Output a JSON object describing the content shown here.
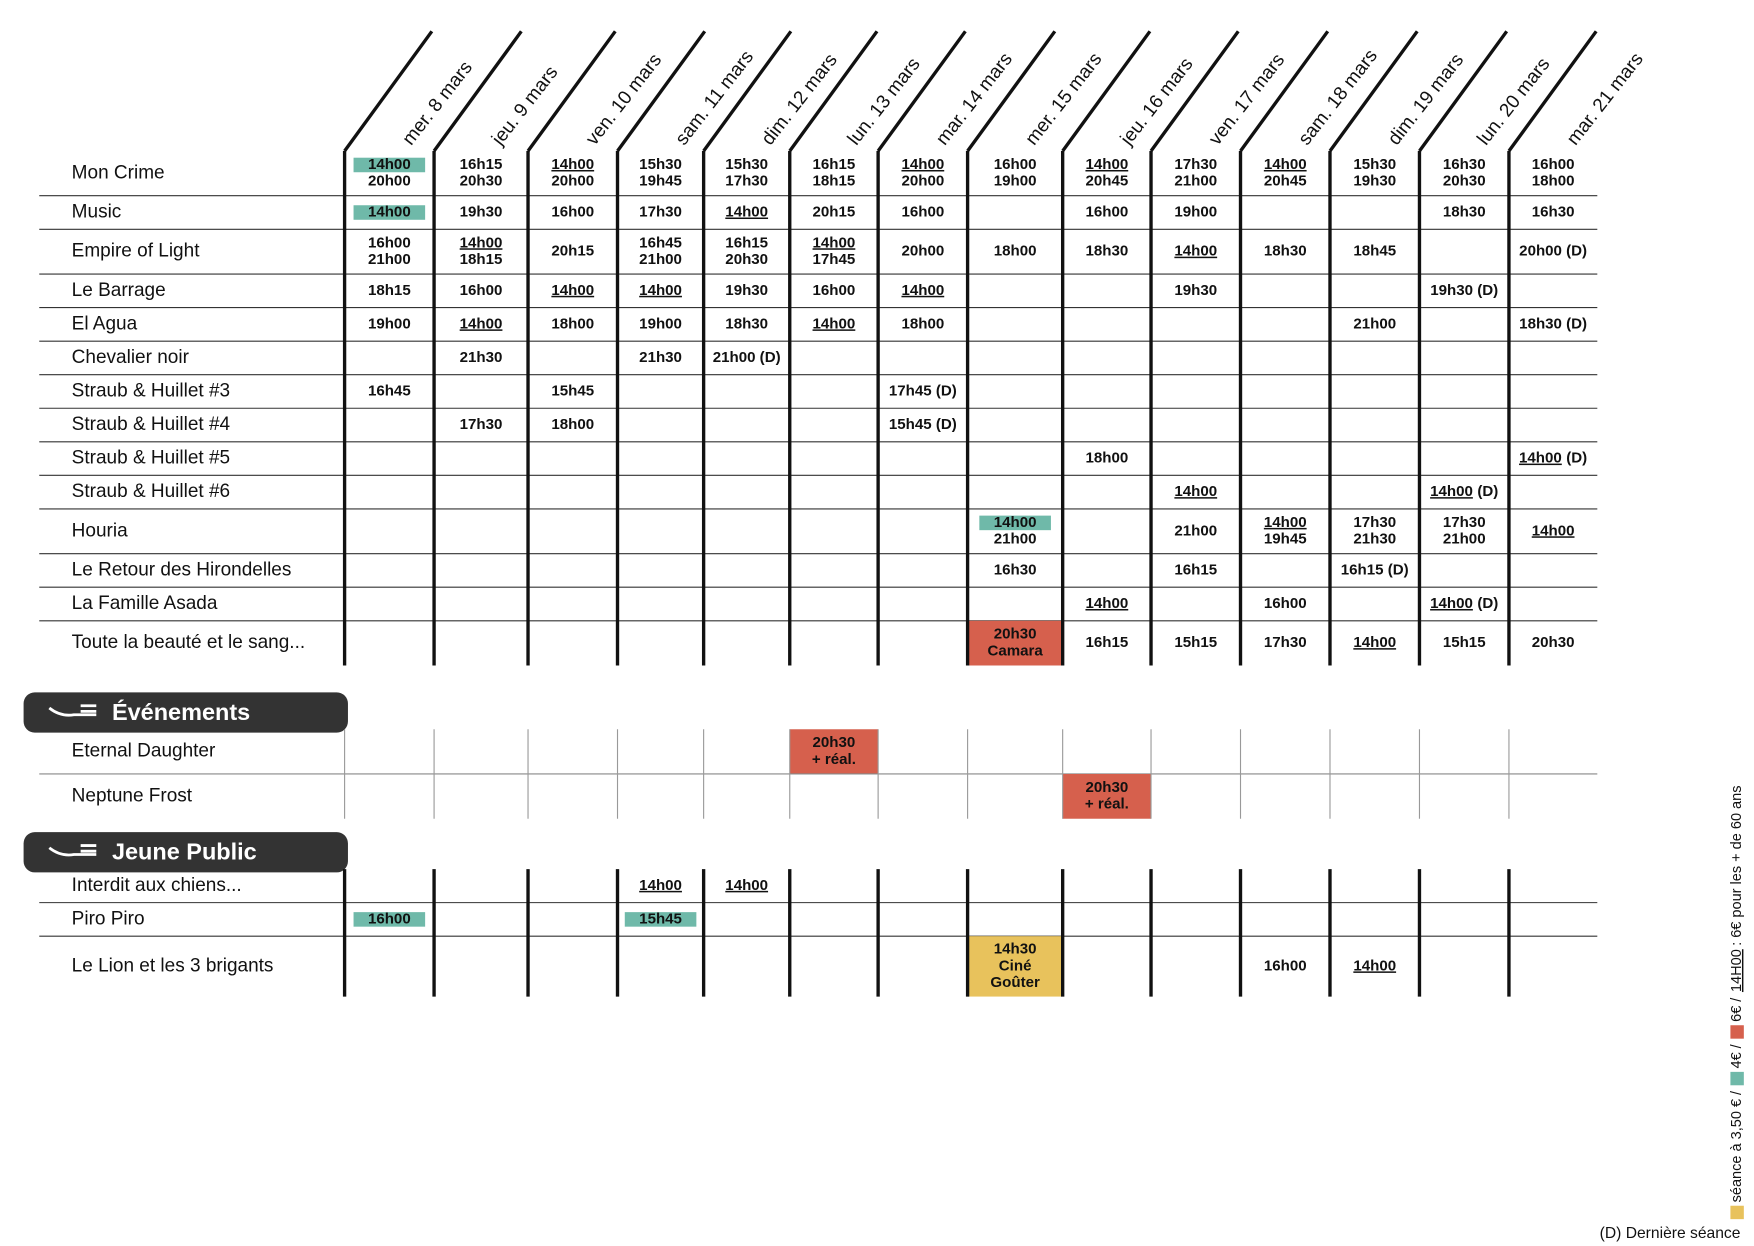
{
  "days": [
    "mer. 8 mars",
    "jeu. 9 mars",
    "ven. 10 mars",
    "sam. 11 mars",
    "dim. 12 mars",
    "lun. 13 mars",
    "mar. 14 mars",
    "mer. 15 mars",
    "jeu. 16 mars",
    "ven. 17 mars",
    "sam. 18 mars",
    "dim. 19 mars",
    "lun. 20 mars",
    "mar. 21 mars"
  ],
  "colors": {
    "reduced": "#6fb9a9",
    "special": "#d6604d",
    "kids": "#e8c25c",
    "pill": "#333333"
  },
  "sections": [
    {
      "films": [
        {
          "name": "Mon Crime",
          "cells": [
            [
              {
                "t": "14h00",
                "hl": true
              },
              "20h00"
            ],
            [
              "16h15",
              "20h30"
            ],
            [
              {
                "t": "14h00",
                "u": true
              },
              "20h00"
            ],
            [
              "15h30",
              "19h45"
            ],
            [
              "15h30",
              "17h30"
            ],
            [
              "16h15",
              "18h15"
            ],
            [
              {
                "t": "14h00",
                "u": true
              },
              "20h00"
            ],
            [
              "16h00",
              "19h00"
            ],
            [
              {
                "t": "14h00",
                "u": true
              },
              "20h45"
            ],
            [
              "17h30",
              "21h00"
            ],
            [
              {
                "t": "14h00",
                "u": true
              },
              "20h45"
            ],
            [
              "15h30",
              "19h30"
            ],
            [
              "16h30",
              "20h30"
            ],
            [
              "16h00",
              "18h00"
            ]
          ]
        },
        {
          "name": "Music",
          "cells": [
            [
              {
                "t": "14h00",
                "hl": true
              }
            ],
            [
              "19h30"
            ],
            [
              "16h00"
            ],
            [
              "17h30"
            ],
            [
              {
                "t": "14h00",
                "u": true
              }
            ],
            [
              "20h15"
            ],
            [
              "16h00"
            ],
            null,
            [
              "16h00"
            ],
            [
              "19h00"
            ],
            null,
            null,
            [
              "18h30"
            ],
            [
              "16h30"
            ]
          ]
        },
        {
          "name": "Empire of Light",
          "cells": [
            [
              "16h00",
              "21h00"
            ],
            [
              {
                "t": "14h00",
                "u": true
              },
              "18h15"
            ],
            [
              "20h15"
            ],
            [
              "16h45",
              "21h00"
            ],
            [
              "16h15",
              "20h30"
            ],
            [
              {
                "t": "14h00",
                "u": true
              },
              "17h45"
            ],
            [
              "20h00"
            ],
            [
              "18h00"
            ],
            [
              "18h30"
            ],
            [
              {
                "t": "14h00",
                "u": true
              }
            ],
            [
              "18h30"
            ],
            [
              "18h45"
            ],
            null,
            [
              "20h00 (D)"
            ]
          ]
        },
        {
          "name": "Le Barrage",
          "cells": [
            [
              "18h15"
            ],
            [
              "16h00"
            ],
            [
              {
                "t": "14h00",
                "u": true
              }
            ],
            [
              {
                "t": "14h00",
                "u": true
              }
            ],
            [
              "19h30"
            ],
            [
              "16h00"
            ],
            [
              {
                "t": "14h00",
                "u": true
              }
            ],
            null,
            null,
            [
              "19h30"
            ],
            null,
            null,
            [
              "19h30 (D)"
            ],
            null
          ]
        },
        {
          "name": "El Agua",
          "cells": [
            [
              "19h00"
            ],
            [
              {
                "t": "14h00",
                "u": true
              }
            ],
            [
              "18h00"
            ],
            [
              "19h00"
            ],
            [
              "18h30"
            ],
            [
              {
                "t": "14h00",
                "u": true
              }
            ],
            [
              "18h00"
            ],
            null,
            null,
            null,
            null,
            [
              "21h00"
            ],
            null,
            [
              "18h30 (D)"
            ]
          ]
        },
        {
          "name": "Chevalier noir",
          "cells": [
            null,
            [
              "21h30"
            ],
            null,
            [
              "21h30"
            ],
            [
              "21h00 (D)"
            ],
            null,
            null,
            null,
            null,
            null,
            null,
            null,
            null,
            null
          ]
        },
        {
          "name": "Straub & Huillet #3",
          "cells": [
            [
              "16h45"
            ],
            null,
            [
              "15h45"
            ],
            null,
            null,
            null,
            [
              "17h45 (D)"
            ],
            null,
            null,
            null,
            null,
            null,
            null,
            null
          ]
        },
        {
          "name": "Straub & Huillet #4",
          "cells": [
            null,
            [
              "17h30"
            ],
            [
              "18h00"
            ],
            null,
            null,
            null,
            [
              "15h45 (D)"
            ],
            null,
            null,
            null,
            null,
            null,
            null,
            null
          ]
        },
        {
          "name": "Straub & Huillet #5",
          "cells": [
            null,
            null,
            null,
            null,
            null,
            null,
            null,
            null,
            [
              "18h00"
            ],
            null,
            null,
            null,
            null,
            [
              {
                "t": "14h00",
                "u": true,
                "d": "(D)"
              }
            ]
          ]
        },
        {
          "name": "Straub & Huillet #6",
          "cells": [
            null,
            null,
            null,
            null,
            null,
            null,
            null,
            null,
            null,
            [
              {
                "t": "14h00",
                "u": true
              }
            ],
            null,
            null,
            [
              {
                "t": "14h00",
                "u": true,
                "d": "(D)"
              }
            ],
            null
          ]
        },
        {
          "name": "Houria",
          "cells": [
            null,
            null,
            null,
            null,
            null,
            null,
            null,
            [
              {
                "t": "14h00",
                "hl": true
              },
              "21h00"
            ],
            null,
            [
              "21h00"
            ],
            [
              {
                "t": "14h00",
                "u": true
              },
              "19h45"
            ],
            [
              "17h30",
              "21h30"
            ],
            [
              "17h30",
              "21h00"
            ],
            [
              {
                "t": "14h00",
                "u": true
              }
            ]
          ]
        },
        {
          "name": "Le Retour des Hirondelles",
          "cells": [
            null,
            null,
            null,
            null,
            null,
            null,
            null,
            [
              "16h30"
            ],
            null,
            [
              "16h15"
            ],
            null,
            [
              "16h15 (D)"
            ],
            null,
            null
          ]
        },
        {
          "name": "La Famille Asada",
          "cells": [
            null,
            null,
            null,
            null,
            null,
            null,
            null,
            null,
            [
              {
                "t": "14h00",
                "u": true
              }
            ],
            null,
            [
              "16h00"
            ],
            null,
            [
              {
                "t": "14h00",
                "u": true,
                "d": "(D)"
              }
            ],
            null
          ]
        },
        {
          "name": "Toute la beauté et le sang...",
          "cells": [
            null,
            null,
            null,
            null,
            null,
            null,
            null,
            {
              "box": "#d6604d",
              "lines": [
                "20h30",
                "Camara"
              ]
            },
            [
              "16h15"
            ],
            [
              "15h15"
            ],
            [
              "17h30"
            ],
            [
              {
                "t": "14h00",
                "u": true
              }
            ],
            [
              "15h15"
            ],
            [
              "20h30"
            ]
          ]
        }
      ]
    },
    {
      "title": "Événements",
      "films": [
        {
          "name": "Eternal Daughter",
          "cells": [
            null,
            null,
            null,
            null,
            null,
            {
              "box": "#d6604d",
              "lines": [
                "20h30",
                "+ réal."
              ]
            },
            null,
            null,
            null,
            null,
            null,
            null,
            null,
            null
          ]
        },
        {
          "name": "Neptune Frost",
          "cells": [
            null,
            null,
            null,
            null,
            null,
            null,
            null,
            null,
            {
              "box": "#d6604d",
              "lines": [
                "20h30",
                "+ réal."
              ]
            },
            null,
            null,
            null,
            null,
            null
          ]
        }
      ]
    },
    {
      "title": "Jeune Public",
      "films": [
        {
          "name": "Interdit aux chiens...",
          "cells": [
            null,
            null,
            null,
            [
              {
                "t": "14h00",
                "u": true
              }
            ],
            [
              {
                "t": "14h00",
                "u": true
              }
            ],
            null,
            null,
            null,
            null,
            null,
            null,
            null,
            null,
            null
          ]
        },
        {
          "name": "Piro Piro",
          "cells": [
            [
              {
                "t": "16h00",
                "hl": true
              }
            ],
            null,
            null,
            [
              {
                "t": "15h45",
                "hl": true
              }
            ],
            null,
            null,
            null,
            null,
            null,
            null,
            null,
            null,
            null,
            null
          ]
        },
        {
          "name": "Le Lion et les 3 brigants",
          "cells": [
            null,
            null,
            null,
            null,
            null,
            null,
            null,
            {
              "box": "#e8c25c",
              "lines": [
                "14h30",
                "Ciné",
                "Goûter"
              ]
            },
            null,
            null,
            [
              "16h00"
            ],
            [
              {
                "t": "14h00",
                "u": true
              }
            ],
            null,
            null
          ]
        }
      ]
    }
  ],
  "legend": {
    "items": [
      {
        "color": "#e8c25c",
        "text": "séance à 3,50 € /"
      },
      {
        "color": "#6fb9a9",
        "text": "4€ /"
      },
      {
        "color": "#d6604d",
        "text": "6€ /"
      }
    ],
    "underlined": "14H00",
    "rest": ": 6€ pour les + de 60 ans"
  },
  "note": "(D) Dernière séance"
}
